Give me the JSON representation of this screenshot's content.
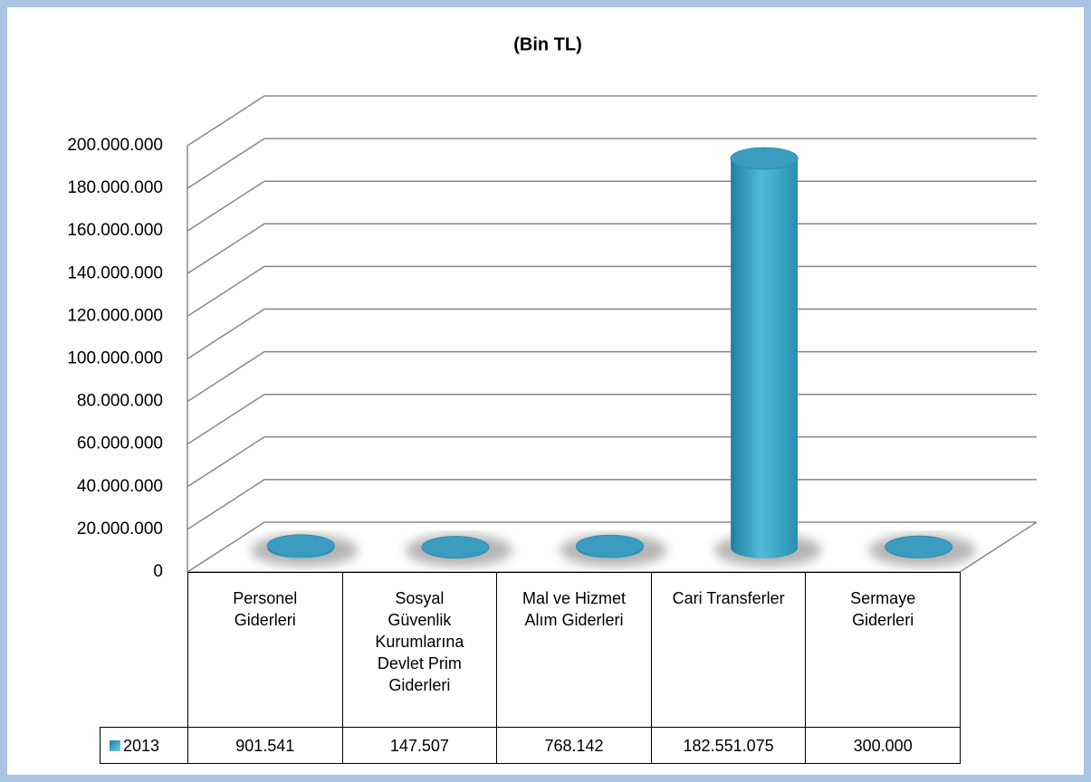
{
  "chart_data": {
    "type": "bar3d",
    "title": "(Bin TL)",
    "categories": [
      "Personel Giderleri",
      "Sosyal Güvenlik Kurumlarına Devlet Prim Giderleri",
      "Mal ve Hizmet Alım Giderleri",
      "Cari Transferler",
      "Sermaye Giderleri"
    ],
    "series": [
      {
        "name": "2013",
        "color": "#3a9cbf",
        "values": [
          901541,
          147507,
          768142,
          182551075,
          300000
        ],
        "value_labels": [
          "901.541",
          "147.507",
          "768.142",
          "182.551.075",
          "300.000"
        ]
      }
    ],
    "ylim": [
      0,
      200000000
    ],
    "yticks": [
      0,
      {
        "value": 20000000,
        "label": "20.000.000"
      },
      {
        "value": 40000000,
        "label": "40.000.000"
      },
      {
        "value": 60000000,
        "label": "60.000.000"
      },
      {
        "value": 80000000,
        "label": "80.000.000"
      },
      {
        "value": 100000000,
        "label": "100.000.000"
      },
      {
        "value": 120000000,
        "label": "120.000.000"
      },
      {
        "value": 140000000,
        "label": "140.000.000"
      },
      {
        "value": 160000000,
        "label": "160.000.000"
      },
      {
        "value": 180000000,
        "label": "180.000.000"
      },
      {
        "value": 200000000,
        "label": "200.000.000"
      }
    ],
    "grid": true
  }
}
